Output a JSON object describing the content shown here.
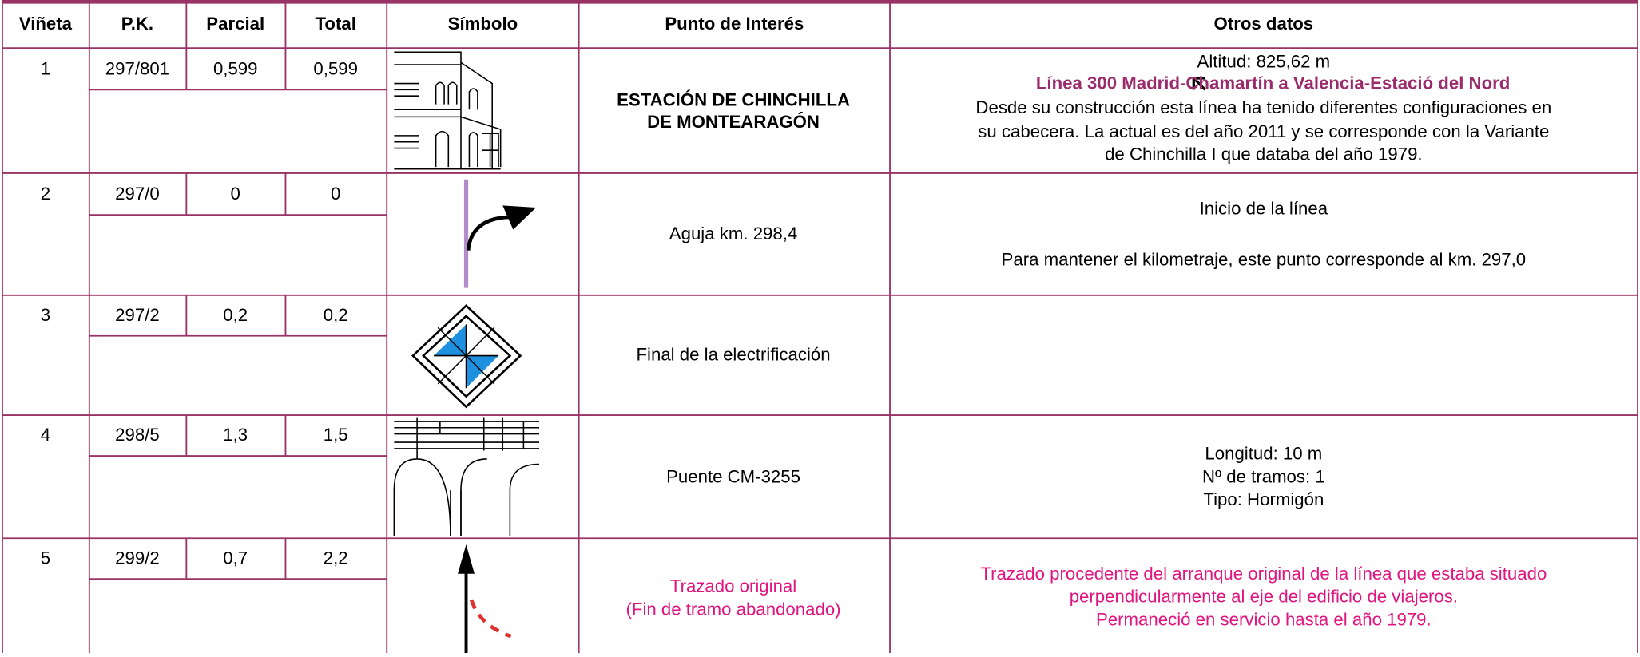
{
  "header": [
    "Viñeta",
    "P.K.",
    "Parcial",
    "Total",
    "Símbolo",
    "Punto de Interés",
    "Otros datos"
  ],
  "rows": [
    {
      "vineta": "1",
      "pk": "297/801",
      "parcial": "0,599",
      "total": "0,599",
      "punto": [
        "ESTACIÓN DE CHINCHILLA",
        "DE MONTEARAGÓN"
      ],
      "otros": [
        "Altitud: 825,62 m",
        "Línea 300 Madrid-Chamartín a Valencia-Estació del Nord",
        "Desde su construcción esta línea ha tenido diferentes configuraciones en",
        "su cabecera. La actual es del año 2011 y se corresponde con la Variante",
        "de Chinchilla I que databa del año 1979."
      ]
    },
    {
      "vineta": "2",
      "pk": "297/0",
      "parcial": "0",
      "total": "0",
      "punto": [
        "Aguja km. 298,4"
      ],
      "otros": [
        "Inicio de la línea",
        "Para mantener el kilometraje, este punto corresponde al km. 297,0"
      ]
    },
    {
      "vineta": "3",
      "pk": "297/2",
      "parcial": "0,2",
      "total": "0,2",
      "punto": [
        "Final de la electrificación"
      ]
    },
    {
      "vineta": "4",
      "pk": "298/5",
      "parcial": "1,3",
      "total": "1,5",
      "punto": [
        "Puente CM-3255"
      ],
      "otros": [
        "Longitud: 10 m",
        "Nº de tramos: 1",
        "Tipo: Hormigón"
      ]
    },
    {
      "vineta": "5",
      "pk": "299/2",
      "parcial": "0,7",
      "total": "2,2",
      "punto": [
        "Trazado original",
        "(Fin de tramo abandonado)"
      ],
      "otros": [
        "Trazado procedente del arranque original de la línea que estaba situado",
        "perpendicularmente al eje del edificio de viajeros.",
        "Permaneció en servicio hasta el año 1979."
      ]
    }
  ]
}
